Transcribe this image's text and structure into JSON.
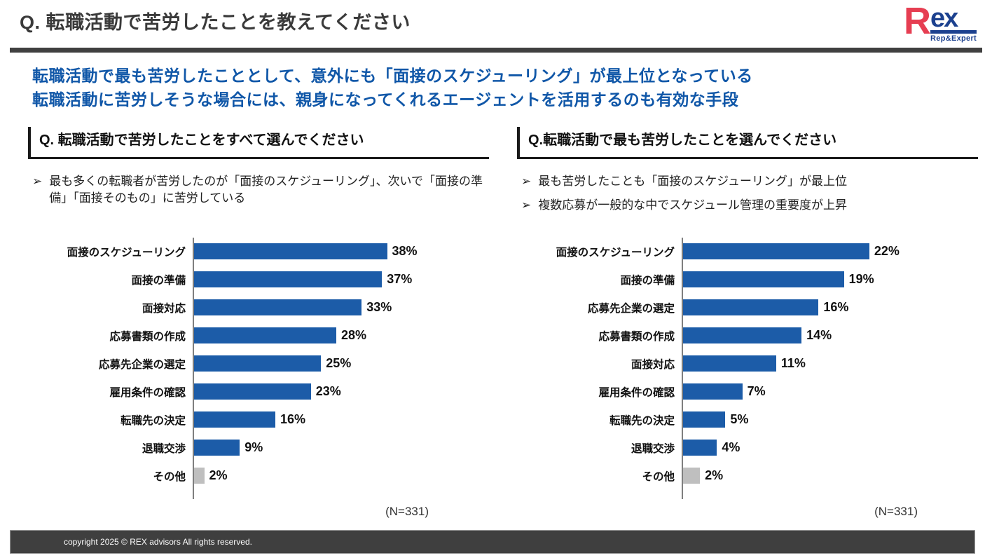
{
  "page": {
    "title": "Q. 転職活動で苦労したことを教えてください",
    "logo": {
      "r": "R",
      "ex": "ex",
      "sub": "Rep&Expert"
    },
    "lead_lines": [
      "転職活動で最も苦労したこととして、意外にも「面接のスケジューリング」が最上位となっている",
      "転職活動に苦労しそうな場合には、親身になってくれるエージェントを活用するのも有効な手段"
    ],
    "bullet_icon": "➢",
    "footer_text": "copyright 2025 © REX advisors All rights reserved."
  },
  "colors": {
    "title_gray": "#3a3a3a",
    "rule_gray": "#404040",
    "lead_blue": "#1057a8",
    "bar_blue": "#1c5ca8",
    "bar_gray": "#bfbfbf",
    "axis_gray": "#7f7f7f",
    "logo_red": "#e63e52",
    "logo_blue": "#1c418f",
    "footer_bg": "#3f3f3f"
  },
  "panels": [
    {
      "header": "Q. 転職活動で苦労したことをすべて選んでください",
      "bullets": [
        "最も多くの転職者が苦労したのが「面接のスケジューリング」、次いで「面接の準備」「面接そのもの」に苦労している"
      ],
      "sample_note": "(N=331)"
    },
    {
      "header": "Q.転職活動で最も苦労したことを選んでください",
      "bullets": [
        "最も苦労したことも「面接のスケジューリング」が最上位",
        "複数応募が一般的な中でスケジュール管理の重要度が上昇"
      ],
      "sample_note": "(N=331)"
    }
  ],
  "chart_data": [
    {
      "type": "bar",
      "orientation": "horizontal",
      "title": "Q. 転職活動で苦労したことをすべて選んでください",
      "categories": [
        "面接のスケジューリング",
        "面接の準備",
        "面接対応",
        "応募書類の作成",
        "応募先企業の選定",
        "雇用条件の確認",
        "転職先の決定",
        "退職交渉",
        "その他"
      ],
      "values": [
        38,
        37,
        33,
        28,
        25,
        23,
        16,
        9,
        2
      ],
      "value_suffix": "%",
      "xlim": [
        0,
        40
      ],
      "bar_colors": [
        "#1c5ca8",
        "#1c5ca8",
        "#1c5ca8",
        "#1c5ca8",
        "#1c5ca8",
        "#1c5ca8",
        "#1c5ca8",
        "#1c5ca8",
        "#bfbfbf"
      ],
      "grid": false,
      "legend": false,
      "sample_note": "(N=331)"
    },
    {
      "type": "bar",
      "orientation": "horizontal",
      "title": "Q.転職活動で最も苦労したことを選んでください",
      "categories": [
        "面接のスケジューリング",
        "面接の準備",
        "応募先企業の選定",
        "応募書類の作成",
        "面接対応",
        "雇用条件の確認",
        "転職先の決定",
        "退職交渉",
        "その他"
      ],
      "values": [
        22,
        19,
        16,
        14,
        11,
        7,
        5,
        4,
        2
      ],
      "value_suffix": "%",
      "xlim": [
        0,
        24
      ],
      "bar_colors": [
        "#1c5ca8",
        "#1c5ca8",
        "#1c5ca8",
        "#1c5ca8",
        "#1c5ca8",
        "#1c5ca8",
        "#1c5ca8",
        "#1c5ca8",
        "#bfbfbf"
      ],
      "grid": false,
      "legend": false,
      "sample_note": "(N=331)"
    }
  ]
}
